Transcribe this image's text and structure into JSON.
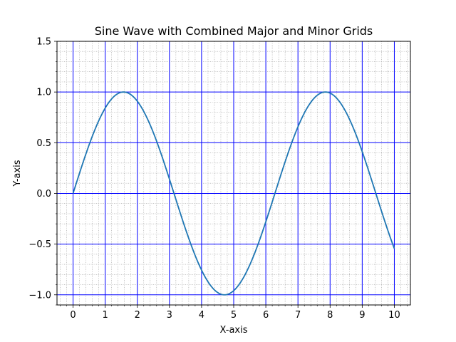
{
  "chart_data": {
    "type": "line",
    "title": "Sine Wave with Combined Major and Minor Grids",
    "xlabel": "X-axis",
    "ylabel": "Y-axis",
    "xlim": [
      -0.5,
      10.5
    ],
    "ylim": [
      -1.1,
      1.5
    ],
    "x_ticks": [
      0,
      1,
      2,
      3,
      4,
      5,
      6,
      7,
      8,
      9,
      10
    ],
    "x_tick_labels": [
      "0",
      "1",
      "2",
      "3",
      "4",
      "5",
      "6",
      "7",
      "8",
      "9",
      "10"
    ],
    "y_ticks": [
      -1.0,
      -0.5,
      0.0,
      0.5,
      1.0,
      1.5
    ],
    "y_tick_labels": [
      "−1.0",
      "−0.5",
      "0.0",
      "0.5",
      "1.0",
      "1.5"
    ],
    "grid": {
      "major": true,
      "minor": true,
      "major_color": "#0000ff",
      "minor_color": "#a0a0a0"
    },
    "series": [
      {
        "color": "#1f77b4",
        "function": "sin(x)",
        "x_range": [
          0,
          10
        ],
        "x": [
          0,
          0.5,
          1,
          1.5,
          2,
          2.5,
          3,
          3.5,
          4,
          4.5,
          5,
          5.5,
          6,
          6.5,
          7,
          7.5,
          8,
          8.5,
          9,
          9.5,
          10
        ],
        "y": [
          0,
          0.479,
          0.841,
          0.997,
          0.909,
          0.598,
          0.141,
          -0.351,
          -0.757,
          -0.978,
          -0.959,
          -0.706,
          -0.279,
          0.215,
          0.657,
          0.938,
          0.989,
          0.798,
          0.412,
          -0.075,
          -0.544
        ]
      }
    ]
  }
}
